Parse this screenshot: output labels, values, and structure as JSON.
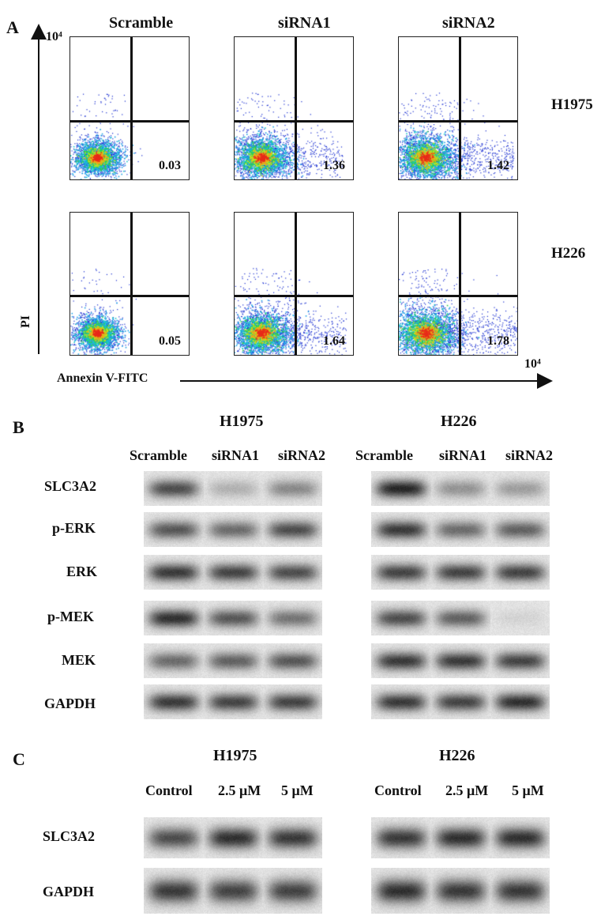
{
  "panelA": {
    "letter": "A",
    "columns": [
      "Scramble",
      "siRNA1",
      "siRNA2"
    ],
    "rows": [
      {
        "label": "H1975",
        "values": [
          "0.03",
          "1.36",
          "1.42"
        ]
      },
      {
        "label": "H226",
        "values": [
          "0.05",
          "1.64",
          "1.78"
        ]
      }
    ],
    "y_axis_label": "PI",
    "y_axis_max": "10⁴",
    "x_axis_label": "Annexin V-FITC",
    "x_axis_max": "10⁴"
  },
  "panelB": {
    "letter": "B",
    "groups": [
      {
        "title": "H1975",
        "lanes": [
          "Scramble",
          "siRNA1",
          "siRNA2"
        ]
      },
      {
        "title": "H226",
        "lanes": [
          "Scramble",
          "siRNA1",
          "siRNA2"
        ]
      }
    ],
    "blots": [
      {
        "label": "SLC3A2",
        "h1975": [
          0.75,
          0.25,
          0.45
        ],
        "h226": [
          0.95,
          0.4,
          0.35
        ]
      },
      {
        "label": "p-ERK",
        "h1975": [
          0.7,
          0.6,
          0.75
        ],
        "h226": [
          0.85,
          0.6,
          0.65
        ]
      },
      {
        "label": "ERK",
        "h1975": [
          0.85,
          0.8,
          0.75
        ],
        "h226": [
          0.8,
          0.8,
          0.8
        ]
      },
      {
        "label": "p-MEK",
        "h1975": [
          0.9,
          0.7,
          0.55
        ],
        "h226": [
          0.75,
          0.65,
          0.08
        ]
      },
      {
        "label": "MEK",
        "h1975": [
          0.6,
          0.65,
          0.7
        ],
        "h226": [
          0.85,
          0.85,
          0.8
        ]
      },
      {
        "label": "GAPDH",
        "h1975": [
          0.85,
          0.8,
          0.8
        ],
        "h226": [
          0.85,
          0.8,
          0.9
        ]
      }
    ]
  },
  "panelC": {
    "letter": "C",
    "groups": [
      {
        "title": "H1975",
        "lanes": [
          "Control",
          "2.5 μM",
          "5 μM"
        ]
      },
      {
        "title": "H226",
        "lanes": [
          "Control",
          "2.5 μM",
          "5 μM"
        ]
      }
    ],
    "blots": [
      {
        "label": "SLC3A2",
        "h1975": [
          0.75,
          0.9,
          0.85
        ],
        "h226": [
          0.85,
          0.9,
          0.9
        ]
      },
      {
        "label": "GAPDH",
        "h1975": [
          0.85,
          0.8,
          0.8
        ],
        "h226": [
          0.9,
          0.85,
          0.85
        ]
      }
    ]
  }
}
